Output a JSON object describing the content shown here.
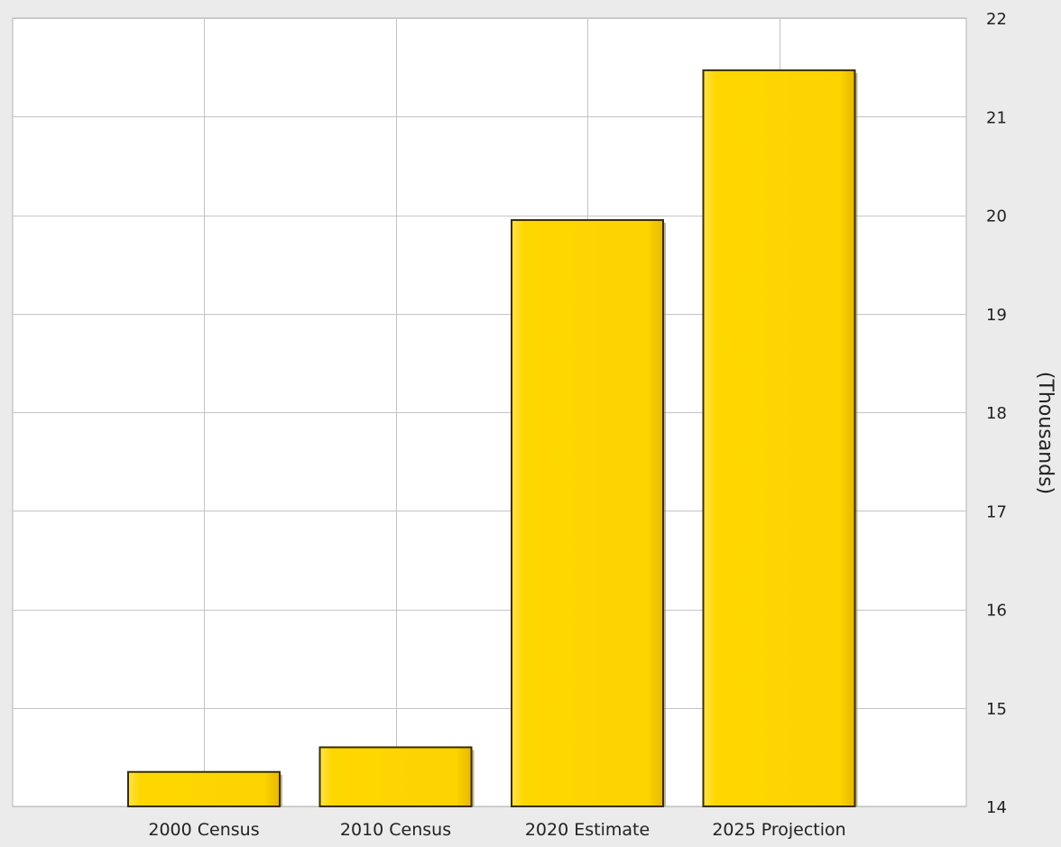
{
  "chart_data": {
    "type": "bar",
    "categories": [
      "2000 Census",
      "2010 Census",
      "2020 Estimate",
      "2025 Projection"
    ],
    "values": [
      14.35,
      14.6,
      19.95,
      21.47
    ],
    "ylabel": "(Thousands)",
    "ylim": [
      14,
      22
    ],
    "yticks": [
      14,
      15,
      16,
      17,
      18,
      19,
      20,
      21,
      22
    ],
    "y_axis_side": "right",
    "grid": true,
    "bar_color": "#ffd700",
    "bar_edge_color": "#3a2e00",
    "background_color": "#ebebeb",
    "plot_background_color": "#ffffff"
  }
}
